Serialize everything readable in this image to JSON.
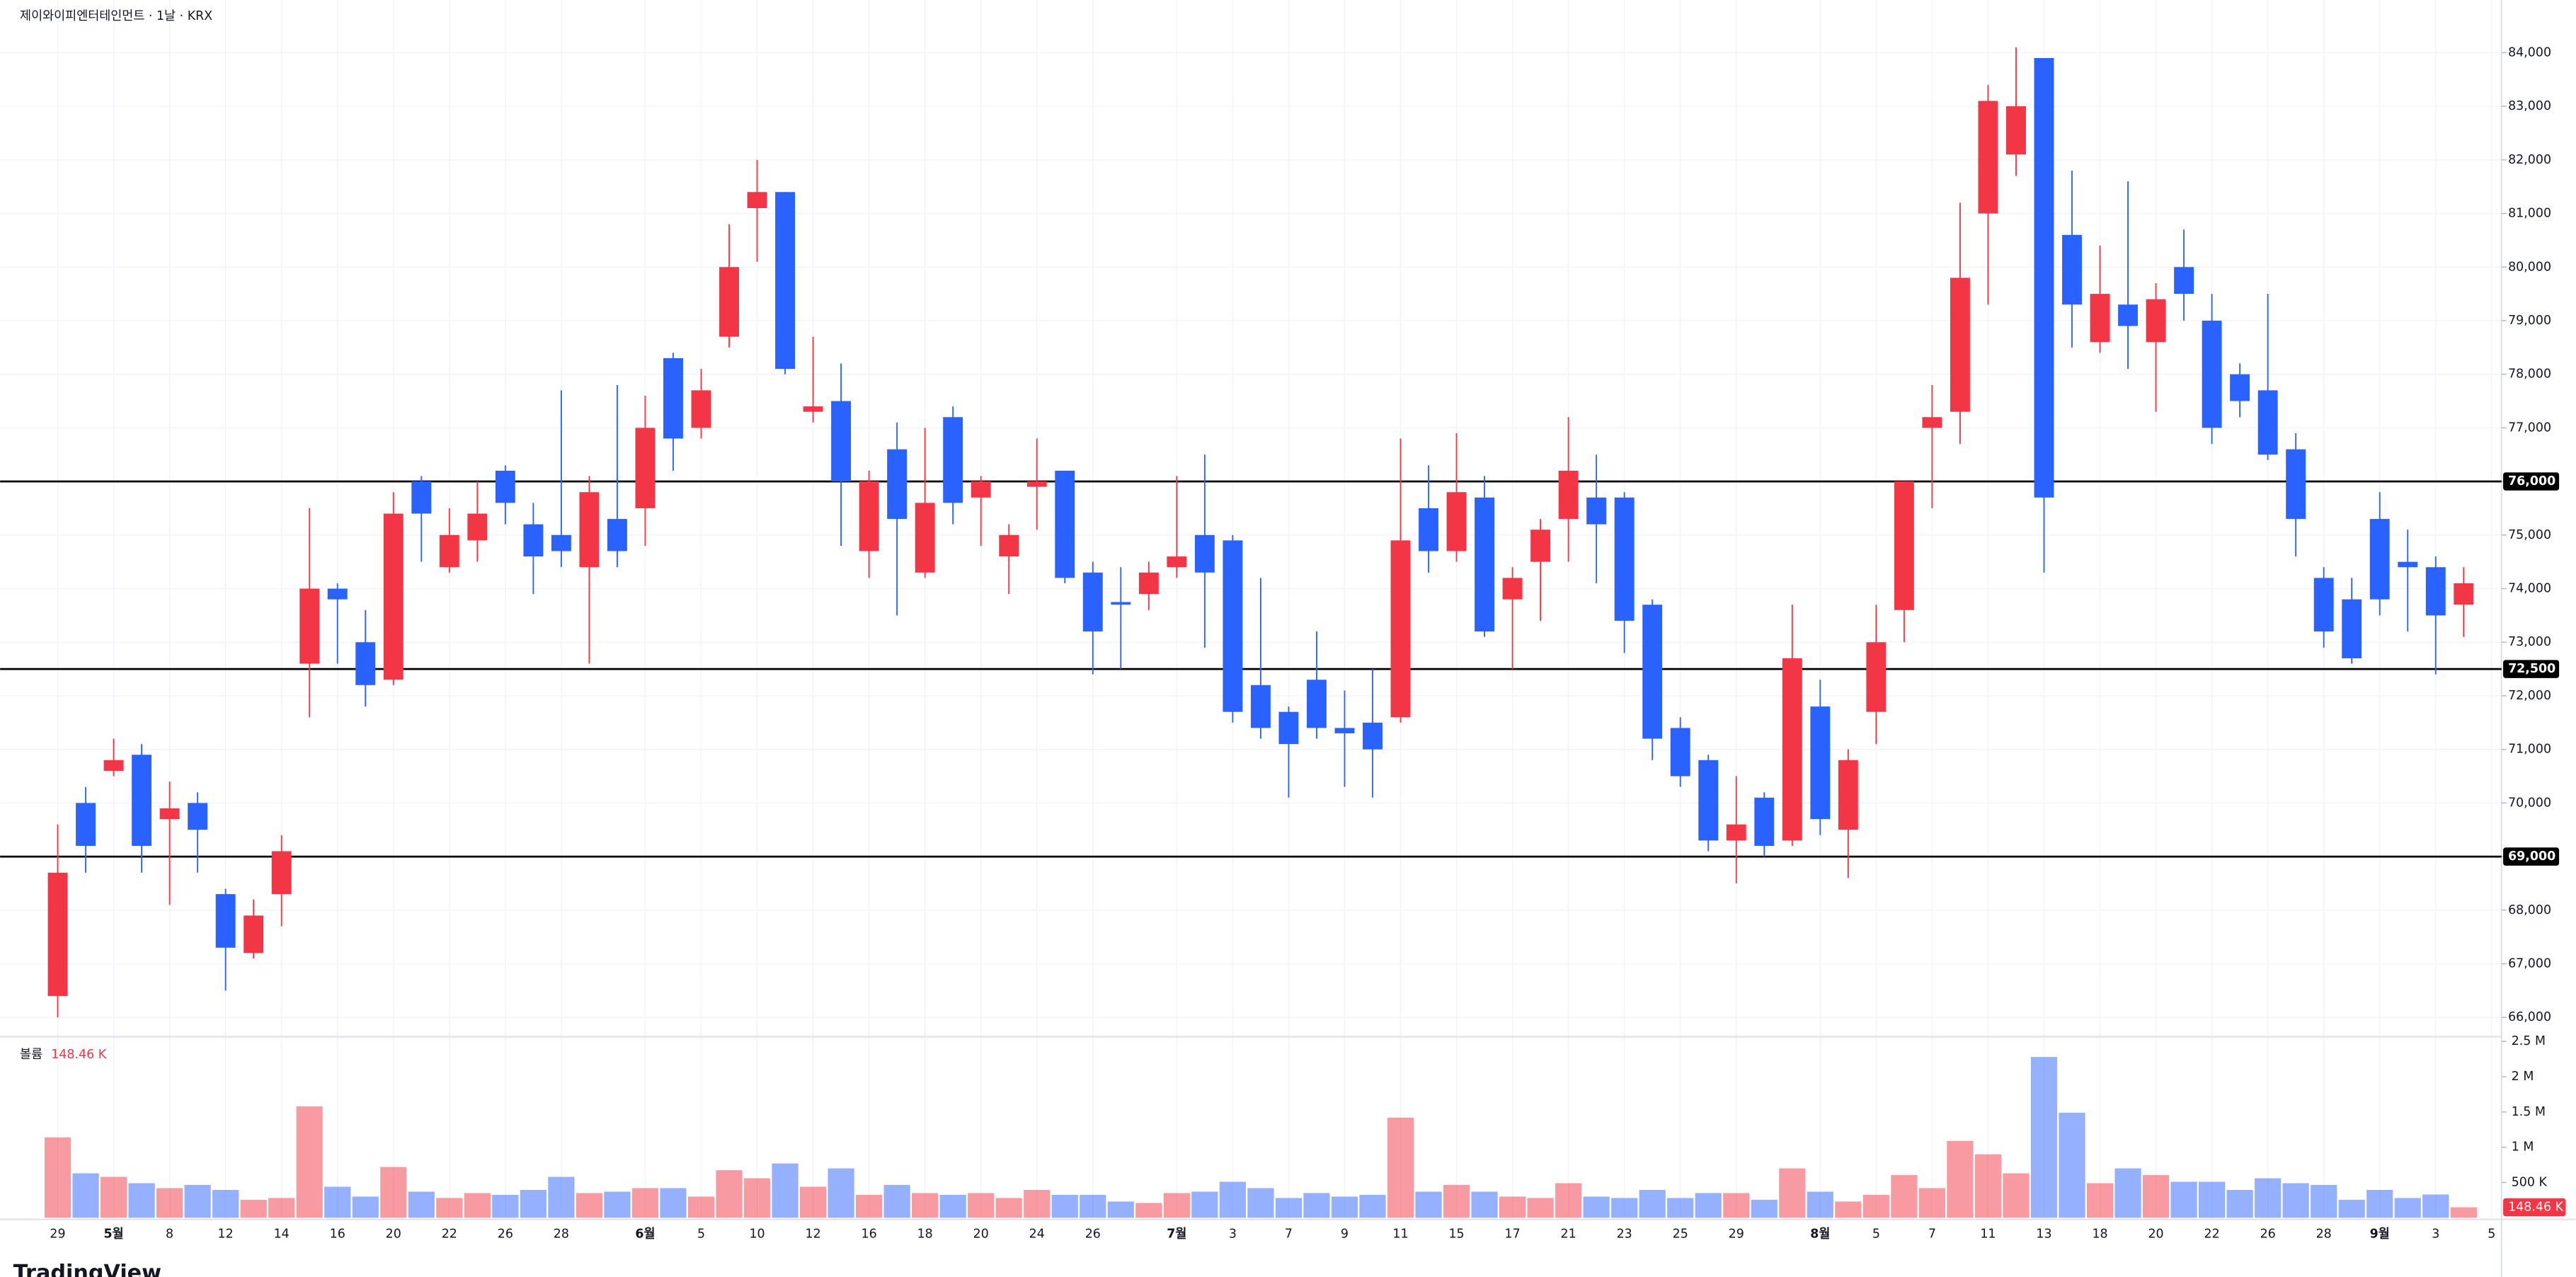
{
  "chart_data": {
    "type": "candlestick",
    "title": "제이와이피엔터테인먼트 · 1날 · KRX",
    "up_color": "#f23645",
    "down_color": "#2962ff",
    "categories": [
      "29",
      null,
      "5월",
      null,
      "8",
      null,
      "12",
      null,
      "14",
      null,
      "16",
      null,
      "20",
      null,
      "22",
      null,
      "26",
      null,
      "28",
      null,
      null,
      "6월",
      null,
      "5",
      null,
      "10",
      null,
      "12",
      null,
      "16",
      null,
      "18",
      null,
      "20",
      null,
      "24",
      null,
      "26",
      null,
      null,
      "7월",
      null,
      "3",
      null,
      "7",
      null,
      "9",
      null,
      "11",
      null,
      "15",
      null,
      "17",
      null,
      "21",
      null,
      "23",
      null,
      "25",
      null,
      "29",
      null,
      null,
      "8월",
      null,
      "5",
      null,
      "7",
      null,
      "11",
      null,
      "13",
      null,
      "18",
      null,
      "20",
      null,
      "22",
      null,
      "26",
      null,
      "28",
      null,
      "9월",
      null,
      "3",
      null,
      "5"
    ],
    "open": [
      66400,
      70000,
      70600,
      70900,
      69700,
      70000,
      68300,
      67200,
      68300,
      72600,
      74000,
      73000,
      72300,
      76000,
      74400,
      74900,
      76200,
      75200,
      75000,
      74400,
      75300,
      75500,
      78300,
      77000,
      78700,
      81100,
      81400,
      77300,
      77500,
      74700,
      76600,
      74300,
      77200,
      75700,
      74600,
      75900,
      76200,
      74300,
      73750,
      73900,
      74400,
      75000,
      74900,
      72200,
      71700,
      72300,
      71400,
      71500,
      71600,
      75500,
      74700,
      75700,
      73800,
      74500,
      75300,
      75700,
      75700,
      73700,
      71400,
      70800,
      69300,
      70100,
      69300,
      71800,
      69500,
      71700,
      73600,
      77000,
      77300,
      81000,
      82100,
      83900,
      80600,
      78600,
      79300,
      78600,
      80000,
      79000,
      78000,
      77700,
      76600,
      74200,
      73800,
      75300,
      74500,
      74400,
      73700,
      null
    ],
    "high": [
      69600,
      70300,
      71200,
      71100,
      70400,
      70200,
      68400,
      68200,
      69400,
      75500,
      74100,
      73600,
      75800,
      76100,
      75500,
      76000,
      76300,
      75600,
      77700,
      76100,
      77800,
      77600,
      78400,
      78100,
      80800,
      82000,
      81400,
      78700,
      78200,
      76200,
      77100,
      77000,
      77400,
      76100,
      75200,
      76800,
      76200,
      74500,
      74400,
      74500,
      76100,
      76500,
      75000,
      74200,
      71800,
      73200,
      72100,
      72500,
      76800,
      76300,
      76900,
      76100,
      74400,
      75300,
      77200,
      76500,
      75800,
      73800,
      71600,
      70900,
      70500,
      70200,
      73700,
      72300,
      71000,
      73700,
      76000,
      77800,
      81200,
      83400,
      84100,
      83900,
      81800,
      80400,
      81600,
      79700,
      80700,
      79500,
      78200,
      79500,
      76900,
      74400,
      74200,
      75800,
      75100,
      74600,
      74400,
      null
    ],
    "low": [
      66000,
      68700,
      70500,
      68700,
      68100,
      68700,
      66500,
      67100,
      67700,
      71600,
      72600,
      71800,
      72200,
      74500,
      74300,
      74500,
      75200,
      73900,
      74400,
      72600,
      74400,
      74800,
      76200,
      76800,
      78500,
      80100,
      78000,
      77100,
      74800,
      74200,
      73500,
      74200,
      75200,
      74800,
      73900,
      75100,
      74100,
      72400,
      72500,
      73600,
      74200,
      72900,
      71500,
      71200,
      70100,
      71200,
      70300,
      70100,
      71500,
      74300,
      74500,
      73100,
      72500,
      73400,
      74500,
      74100,
      72800,
      70800,
      70300,
      69100,
      68500,
      69000,
      69200,
      69400,
      68600,
      71100,
      73000,
      75500,
      76700,
      79300,
      81700,
      74300,
      78500,
      78400,
      78100,
      77300,
      79000,
      76700,
      77200,
      76400,
      74600,
      72900,
      72600,
      73500,
      73200,
      72400,
      73100,
      null
    ],
    "close": [
      68700,
      69200,
      70800,
      69200,
      69900,
      69500,
      67300,
      67900,
      69100,
      74000,
      73800,
      72200,
      75400,
      75400,
      75000,
      75400,
      75600,
      74600,
      74700,
      75800,
      74700,
      77000,
      76800,
      77700,
      80000,
      81400,
      78100,
      77400,
      76000,
      76000,
      75300,
      75600,
      75600,
      76000,
      75000,
      76000,
      74200,
      73200,
      73700,
      74300,
      74600,
      74300,
      71700,
      71400,
      71100,
      71400,
      71300,
      71000,
      74900,
      74700,
      75800,
      73200,
      74200,
      75100,
      76200,
      75200,
      73400,
      71200,
      70500,
      69300,
      69600,
      69200,
      72700,
      69700,
      70800,
      73000,
      76000,
      77200,
      79800,
      83100,
      83000,
      75700,
      79300,
      79500,
      78900,
      79400,
      79500,
      77000,
      77500,
      76500,
      75300,
      73200,
      72700,
      73800,
      74400,
      73500,
      74100,
      null
    ],
    "ylim": [
      65700,
      84983
    ],
    "yticks": [
      {
        "value": 66000,
        "label": "66,000"
      },
      {
        "value": 67000,
        "label": "67,000"
      },
      {
        "value": 68000,
        "label": "68,000"
      },
      {
        "value": 69000,
        "label": "69,000"
      },
      {
        "value": 70000,
        "label": "70,000"
      },
      {
        "value": 71000,
        "label": "71,000"
      },
      {
        "value": 72000,
        "label": "72,000"
      },
      {
        "value": 73000,
        "label": "73,000"
      },
      {
        "value": 74000,
        "label": "74,000"
      },
      {
        "value": 75000,
        "label": "75,000"
      },
      {
        "value": 76000,
        "label": "76,000"
      },
      {
        "value": 77000,
        "label": "77,000"
      },
      {
        "value": 78000,
        "label": "78,000"
      },
      {
        "value": 79000,
        "label": "79,000"
      },
      {
        "value": 80000,
        "label": "80,000"
      },
      {
        "value": 81000,
        "label": "81,000"
      },
      {
        "value": 82000,
        "label": "82,000"
      },
      {
        "value": 83000,
        "label": "83,000"
      },
      {
        "value": 84000,
        "label": "84,000"
      }
    ],
    "hlines": [
      {
        "value": 76000,
        "label": "76,000"
      },
      {
        "value": 72500,
        "label": "72,500"
      },
      {
        "value": 69000,
        "label": "69,000"
      }
    ],
    "grid": true,
    "volume": {
      "name": "볼륨",
      "last_label": "148.46 K",
      "values": [
        1140000,
        630000,
        580000,
        490000,
        420000,
        465000,
        395000,
        255000,
        280000,
        1580000,
        440000,
        300000,
        720000,
        370000,
        280000,
        350000,
        325000,
        395000,
        580000,
        350000,
        370000,
        420000,
        420000,
        300000,
        675000,
        560000,
        770000,
        440000,
        700000,
        325000,
        465000,
        350000,
        325000,
        350000,
        280000,
        395000,
        325000,
        325000,
        230000,
        210000,
        350000,
        370000,
        510000,
        420000,
        280000,
        350000,
        300000,
        325000,
        1420000,
        370000,
        465000,
        370000,
        300000,
        280000,
        490000,
        300000,
        280000,
        395000,
        280000,
        350000,
        350000,
        255000,
        700000,
        370000,
        230000,
        325000,
        605000,
        420000,
        1090000,
        900000,
        630000,
        2280000,
        1490000,
        490000,
        700000,
        605000,
        510000,
        510000,
        395000,
        560000,
        490000,
        465000,
        255000,
        395000,
        280000,
        330000,
        148460,
        null
      ],
      "ylim": [
        0,
        2520000
      ],
      "yticks": [
        {
          "value": 500000,
          "label": "500 K"
        },
        {
          "value": 1000000,
          "label": "1 M"
        },
        {
          "value": 1500000,
          "label": "1.5 M"
        },
        {
          "value": 2000000,
          "label": "2 M"
        },
        {
          "value": 2500000,
          "label": "2.5 M"
        }
      ]
    },
    "brand": "TradingView"
  }
}
